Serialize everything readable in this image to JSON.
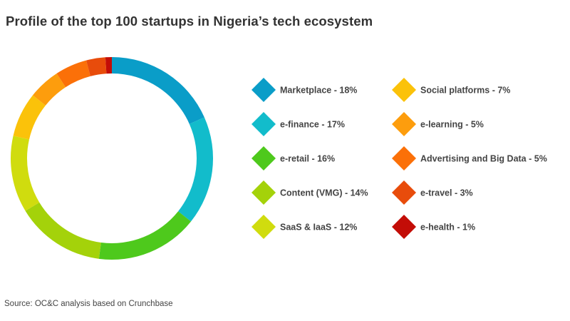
{
  "title": "Profile of the top 100 startups in Nigeria’s tech ecosystem",
  "source": "Source: OC&C analysis based on Crunchbase",
  "chart_data": {
    "type": "pie",
    "style": "donut",
    "title": "Profile of the top 100 startups in Nigeria’s tech ecosystem",
    "legend_position": "right",
    "categories": [
      "Marketplace",
      "e-finance",
      "e-retail",
      "Content (VMG)",
      "SaaS & IaaS",
      "Social platforms",
      "e-learning",
      "Advertising and Big Data",
      "e-travel",
      "e-health"
    ],
    "values": [
      18,
      17,
      16,
      14,
      12,
      7,
      5,
      5,
      3,
      1
    ],
    "unit": "%",
    "legend_labels": [
      "Marketplace - 18%",
      "e-finance - 17%",
      "e-retail - 16%",
      "Content (VMG) - 14%",
      "SaaS & IaaS - 12%",
      "Social platforms - 7%",
      "e-learning - 5%",
      "Advertising and Big Data - 5%",
      "e-travel - 3%",
      "e-health - 1%"
    ],
    "colors": [
      "#0a9dc8",
      "#12bccb",
      "#4ec91c",
      "#a4d20a",
      "#d0dc0e",
      "#fbc20a",
      "#fd9d0d",
      "#fb7008",
      "#e84c0b",
      "#c30d07"
    ]
  }
}
